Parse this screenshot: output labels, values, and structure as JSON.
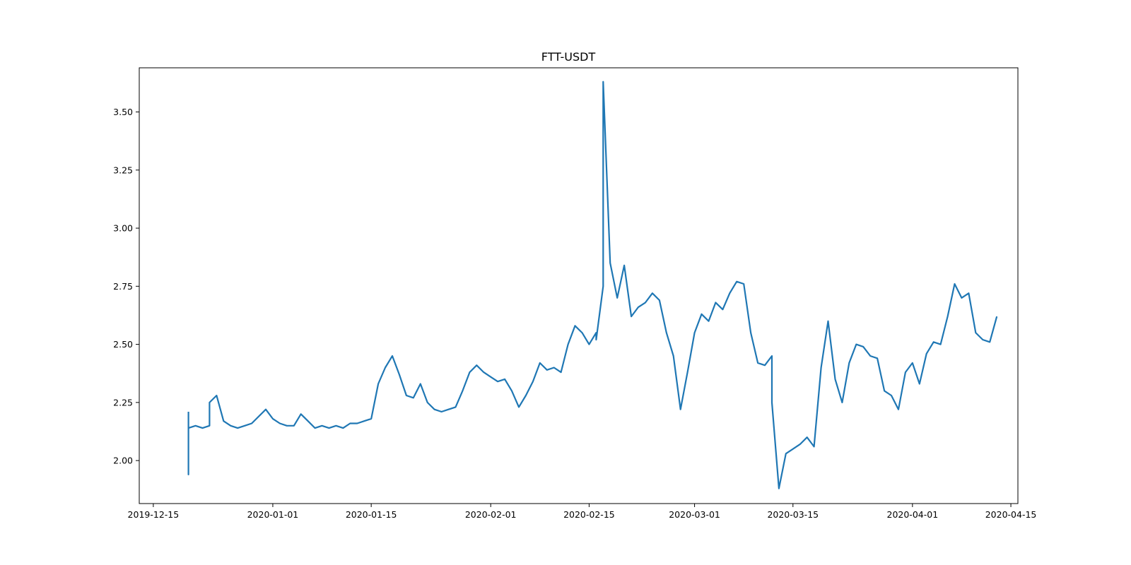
{
  "chart_data": {
    "type": "line",
    "title": "FTT-USDT",
    "xlabel": "",
    "ylabel": "",
    "x_axis": {
      "type": "date",
      "range": [
        "2019-12-13",
        "2020-04-16"
      ],
      "ticks": [
        "2019-12-15",
        "2020-01-01",
        "2020-01-15",
        "2020-02-01",
        "2020-02-15",
        "2020-03-01",
        "2020-03-15",
        "2020-04-01",
        "2020-04-15"
      ]
    },
    "y_axis": {
      "range": [
        1.815,
        3.69
      ],
      "ticks": [
        "2.00",
        "2.25",
        "2.50",
        "2.75",
        "3.00",
        "3.25",
        "3.50"
      ]
    },
    "grid": false,
    "line_color": "#1f77b4",
    "series": [
      {
        "x": [
          "2019-12-20",
          "2019-12-20",
          "2019-12-20",
          "2019-12-21",
          "2019-12-22",
          "2019-12-23",
          "2019-12-23",
          "2019-12-24",
          "2019-12-25",
          "2019-12-26",
          "2019-12-27",
          "2019-12-28",
          "2019-12-29",
          "2019-12-30",
          "2019-12-31",
          "2020-01-01",
          "2020-01-02",
          "2020-01-03",
          "2020-01-04",
          "2020-01-05",
          "2020-01-06",
          "2020-01-07",
          "2020-01-08",
          "2020-01-09",
          "2020-01-10",
          "2020-01-11",
          "2020-01-12",
          "2020-01-13",
          "2020-01-14",
          "2020-01-15",
          "2020-01-16",
          "2020-01-17",
          "2020-01-18",
          "2020-01-19",
          "2020-01-20",
          "2020-01-21",
          "2020-01-22",
          "2020-01-23",
          "2020-01-24",
          "2020-01-25",
          "2020-01-26",
          "2020-01-27",
          "2020-01-28",
          "2020-01-29",
          "2020-01-30",
          "2020-01-31",
          "2020-02-01",
          "2020-02-02",
          "2020-02-03",
          "2020-02-04",
          "2020-02-05",
          "2020-02-06",
          "2020-02-07",
          "2020-02-08",
          "2020-02-09",
          "2020-02-10",
          "2020-02-11",
          "2020-02-12",
          "2020-02-13",
          "2020-02-14",
          "2020-02-15",
          "2020-02-16",
          "2020-02-16",
          "2020-02-17",
          "2020-02-17",
          "2020-02-18",
          "2020-02-19",
          "2020-02-20",
          "2020-02-21",
          "2020-02-22",
          "2020-02-23",
          "2020-02-24",
          "2020-02-25",
          "2020-02-26",
          "2020-02-27",
          "2020-02-28",
          "2020-02-29",
          "2020-03-01",
          "2020-03-02",
          "2020-03-03",
          "2020-03-04",
          "2020-03-05",
          "2020-03-06",
          "2020-03-07",
          "2020-03-08",
          "2020-03-09",
          "2020-03-10",
          "2020-03-11",
          "2020-03-12",
          "2020-03-12",
          "2020-03-13",
          "2020-03-14",
          "2020-03-15",
          "2020-03-16",
          "2020-03-17",
          "2020-03-18",
          "2020-03-19",
          "2020-03-20",
          "2020-03-21",
          "2020-03-22",
          "2020-03-23",
          "2020-03-24",
          "2020-03-25",
          "2020-03-26",
          "2020-03-27",
          "2020-03-28",
          "2020-03-29",
          "2020-03-30",
          "2020-03-31",
          "2020-04-01",
          "2020-04-02",
          "2020-04-03",
          "2020-04-04",
          "2020-04-05",
          "2020-04-06",
          "2020-04-07",
          "2020-04-08",
          "2020-04-09",
          "2020-04-10",
          "2020-04-11",
          "2020-04-12",
          "2020-04-13"
        ],
        "y": [
          2.21,
          1.94,
          2.14,
          2.15,
          2.14,
          2.15,
          2.25,
          2.28,
          2.17,
          2.15,
          2.14,
          2.15,
          2.16,
          2.19,
          2.22,
          2.18,
          2.16,
          2.15,
          2.15,
          2.2,
          2.17,
          2.14,
          2.15,
          2.14,
          2.15,
          2.14,
          2.16,
          2.16,
          2.17,
          2.18,
          2.33,
          2.4,
          2.45,
          2.37,
          2.28,
          2.27,
          2.33,
          2.25,
          2.22,
          2.21,
          2.22,
          2.23,
          2.3,
          2.38,
          2.41,
          2.38,
          2.36,
          2.34,
          2.35,
          2.3,
          2.23,
          2.28,
          2.34,
          2.42,
          2.39,
          2.4,
          2.38,
          2.5,
          2.58,
          2.55,
          2.5,
          2.55,
          2.52,
          2.75,
          3.63,
          2.85,
          2.7,
          2.84,
          2.62,
          2.66,
          2.68,
          2.72,
          2.69,
          2.55,
          2.45,
          2.22,
          2.38,
          2.55,
          2.63,
          2.6,
          2.68,
          2.65,
          2.72,
          2.77,
          2.76,
          2.55,
          2.42,
          2.41,
          2.45,
          2.25,
          1.88,
          2.03,
          2.05,
          2.07,
          2.1,
          2.06,
          2.4,
          2.6,
          2.35,
          2.25,
          2.42,
          2.5,
          2.49,
          2.45,
          2.44,
          2.3,
          2.28,
          2.22,
          2.38,
          2.42,
          2.33,
          2.46,
          2.51,
          2.5,
          2.62,
          2.76,
          2.7,
          2.72,
          2.55,
          2.52,
          2.51,
          2.62
        ]
      }
    ]
  }
}
